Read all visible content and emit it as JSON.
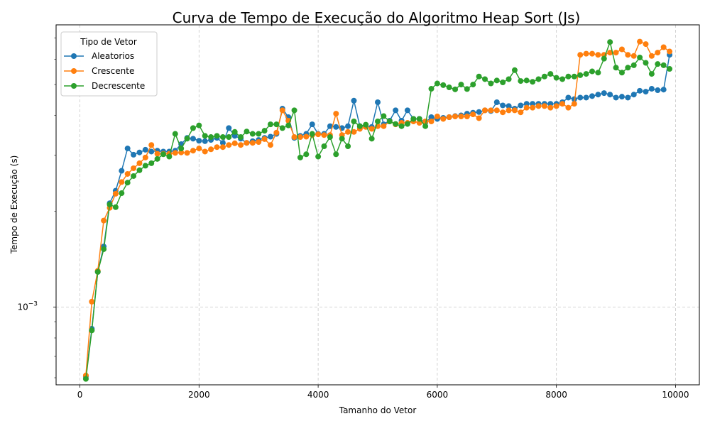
{
  "chart_data": {
    "type": "line",
    "title": "Curva de Tempo de Execução do Algoritmo Heap Sort (Js)",
    "xlabel": "Tamanho do Vetor",
    "ylabel": "Tempo de Execução (s)",
    "xlim": [
      -400,
      10400
    ],
    "ylim": [
      0.00057,
      0.0077
    ],
    "yscale": "log",
    "grid": true,
    "x_ticks": [
      0,
      2000,
      4000,
      6000,
      8000,
      10000
    ],
    "x_tick_labels": [
      "0",
      "2000",
      "4000",
      "6000",
      "8000",
      "10000"
    ],
    "y_ticks": [
      0.001
    ],
    "y_tick_base": "10",
    "y_tick_exp": "−3",
    "legend": {
      "title": "Tipo de Vetor",
      "position": "top-left"
    },
    "x": [
      100,
      200,
      300,
      400,
      500,
      600,
      700,
      800,
      900,
      1000,
      1100,
      1200,
      1300,
      1400,
      1500,
      1600,
      1700,
      1800,
      1900,
      2000,
      2100,
      2200,
      2300,
      2400,
      2500,
      2600,
      2700,
      2800,
      2900,
      3000,
      3100,
      3200,
      3300,
      3400,
      3500,
      3600,
      3700,
      3800,
      3900,
      4000,
      4100,
      4200,
      4300,
      4400,
      4500,
      4600,
      4700,
      4800,
      4900,
      5000,
      5100,
      5200,
      5300,
      5400,
      5500,
      5600,
      5700,
      5800,
      5900,
      6000,
      6100,
      6200,
      6300,
      6400,
      6500,
      6600,
      6700,
      6800,
      6900,
      7000,
      7100,
      7200,
      7300,
      7400,
      7500,
      7600,
      7700,
      7800,
      7900,
      8000,
      8100,
      8200,
      8300,
      8400,
      8500,
      8600,
      8700,
      8800,
      8900,
      9000,
      9100,
      9200,
      9300,
      9400,
      9500,
      9600,
      9700,
      9800,
      9900
    ],
    "series": [
      {
        "name": "Aleatorios",
        "color": "#1f77b4",
        "values": [
          0.000605,
          0.000855,
          0.00129,
          0.00155,
          0.00212,
          0.00232,
          0.00268,
          0.00315,
          0.00301,
          0.00306,
          0.00312,
          0.00308,
          0.0031,
          0.00308,
          0.00308,
          0.0031,
          0.00325,
          0.0034,
          0.00338,
          0.00333,
          0.00332,
          0.00335,
          0.0034,
          0.00328,
          0.00365,
          0.00345,
          0.00338,
          0.00328,
          0.00332,
          0.00335,
          0.0034,
          0.00343,
          0.0035,
          0.0042,
          0.00395,
          0.0034,
          0.00345,
          0.0035,
          0.00375,
          0.0035,
          0.0035,
          0.0037,
          0.00368,
          0.00365,
          0.0037,
          0.00445,
          0.0037,
          0.0037,
          0.00368,
          0.0044,
          0.00375,
          0.00385,
          0.00415,
          0.00385,
          0.00415,
          0.0039,
          0.0039,
          0.0038,
          0.00395,
          0.0039,
          0.00393,
          0.00395,
          0.00398,
          0.004,
          0.00405,
          0.00408,
          0.0041,
          0.00415,
          0.00413,
          0.0044,
          0.0043,
          0.00428,
          0.0042,
          0.0043,
          0.00435,
          0.00435,
          0.00435,
          0.00435,
          0.00435,
          0.00435,
          0.0044,
          0.00455,
          0.0045,
          0.00455,
          0.00455,
          0.0046,
          0.00465,
          0.0047,
          0.00465,
          0.00455,
          0.00458,
          0.00455,
          0.00465,
          0.00478,
          0.00475,
          0.00485,
          0.0048,
          0.00482,
          0.0062
        ]
      },
      {
        "name": "Crescente",
        "color": "#ff7f0e",
        "values": [
          0.00061,
          0.00104,
          0.0013,
          0.00187,
          0.00205,
          0.00227,
          0.00247,
          0.00262,
          0.00273,
          0.00283,
          0.00295,
          0.00323,
          0.00303,
          0.00303,
          0.00303,
          0.00305,
          0.00306,
          0.00305,
          0.0031,
          0.00315,
          0.00308,
          0.00313,
          0.00318,
          0.00318,
          0.00323,
          0.00327,
          0.00323,
          0.00328,
          0.00328,
          0.0033,
          0.00337,
          0.00323,
          0.00353,
          0.00415,
          0.00385,
          0.00342,
          0.00342,
          0.00343,
          0.00347,
          0.00349,
          0.00347,
          0.00347,
          0.00405,
          0.00347,
          0.00355,
          0.00355,
          0.00363,
          0.00368,
          0.00363,
          0.0037,
          0.0037,
          0.00383,
          0.00375,
          0.00379,
          0.00379,
          0.00383,
          0.00379,
          0.00383,
          0.00383,
          0.00397,
          0.0039,
          0.00395,
          0.00397,
          0.00397,
          0.00397,
          0.00403,
          0.00392,
          0.00415,
          0.00415,
          0.00415,
          0.00409,
          0.00415,
          0.00415,
          0.00409,
          0.00423,
          0.00423,
          0.00428,
          0.00428,
          0.00423,
          0.00428,
          0.00435,
          0.00423,
          0.00435,
          0.0062,
          0.00625,
          0.00625,
          0.0062,
          0.0062,
          0.0063,
          0.0063,
          0.00645,
          0.0062,
          0.00615,
          0.00682,
          0.0067,
          0.00615,
          0.0063,
          0.00655,
          0.00635
        ]
      },
      {
        "name": "Decrescente",
        "color": "#2ca02c",
        "values": [
          0.000595,
          0.000845,
          0.00129,
          0.00152,
          0.0021,
          0.00206,
          0.00228,
          0.00246,
          0.00258,
          0.00269,
          0.00278,
          0.00283,
          0.00292,
          0.00302,
          0.00297,
          0.0035,
          0.00315,
          0.00338,
          0.00365,
          0.00372,
          0.00345,
          0.00342,
          0.00345,
          0.00342,
          0.00342,
          0.00355,
          0.00342,
          0.00356,
          0.0035,
          0.0035,
          0.00358,
          0.00375,
          0.00375,
          0.00365,
          0.00372,
          0.00415,
          0.00295,
          0.00302,
          0.0035,
          0.00297,
          0.0032,
          0.00342,
          0.00302,
          0.00338,
          0.0032,
          0.00383,
          0.0037,
          0.00374,
          0.00338,
          0.00383,
          0.00398,
          0.00383,
          0.00376,
          0.0037,
          0.00376,
          0.0039,
          0.0039,
          0.0037,
          0.00485,
          0.00504,
          0.00498,
          0.0049,
          0.00483,
          0.005,
          0.00484,
          0.005,
          0.0053,
          0.0052,
          0.00504,
          0.00515,
          0.00508,
          0.0052,
          0.00555,
          0.00513,
          0.00515,
          0.0051,
          0.0052,
          0.0053,
          0.0054,
          0.00525,
          0.0052,
          0.0053,
          0.0053,
          0.00535,
          0.0054,
          0.0055,
          0.00545,
          0.00603,
          0.0068,
          0.00565,
          0.00545,
          0.00565,
          0.00575,
          0.00608,
          0.00585,
          0.0054,
          0.0058,
          0.00575,
          0.0056
        ]
      }
    ]
  }
}
